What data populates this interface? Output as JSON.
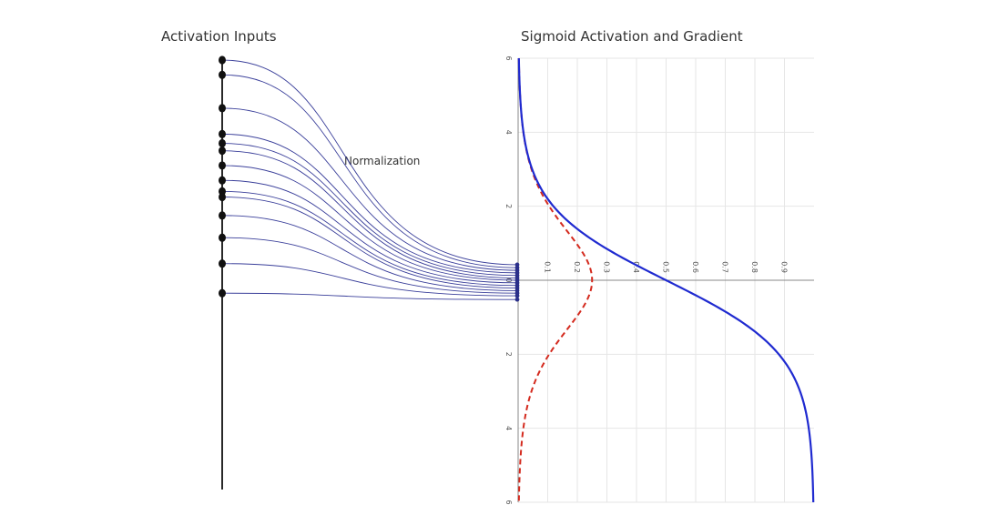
{
  "diagram": {
    "left_title": "Activation Inputs",
    "right_title": "Sigmoid Activation and Gradient",
    "annotation": "Normalization",
    "colors": {
      "lines": "#3a3f9a",
      "input_dots": "#111111",
      "output_dots": "#2a2f8a",
      "sigmoid": "#1f2ad0",
      "gradient": "#d42a1e",
      "grid": "#e6e6e6",
      "axis": "#888888"
    },
    "activation_inputs": [
      -5.95,
      -5.55,
      -4.65,
      -3.95,
      -3.7,
      -3.5,
      -3.1,
      -2.7,
      -2.4,
      -2.25,
      -1.75,
      -1.15,
      -0.45,
      0.35
    ],
    "normalized_values": [
      -0.42,
      -0.34,
      -0.27,
      -0.2,
      -0.13,
      -0.06,
      0.0,
      0.07,
      0.14,
      0.21,
      0.28,
      0.35,
      0.42,
      0.52
    ]
  },
  "chart_data": {
    "type": "line",
    "orientation": "rotated (x runs top-to-bottom, y runs left-to-right)",
    "x_range": [
      -6,
      6
    ],
    "y_range": [
      0,
      1
    ],
    "x_ticks": [
      "6",
      "4",
      "2",
      "0",
      "2",
      "4",
      "6"
    ],
    "x_tick_values": [
      -6,
      -4,
      -2,
      0,
      2,
      4,
      6
    ],
    "y_ticks": [
      "0.1",
      "0.2",
      "0.3",
      "0.4",
      "0.5",
      "0.6",
      "0.7",
      "0.8",
      "0.9"
    ],
    "y_tick_values": [
      0.1,
      0.2,
      0.3,
      0.4,
      0.5,
      0.6,
      0.7,
      0.8,
      0.9
    ],
    "series": [
      {
        "function": "sigmoid",
        "style": "solid"
      },
      {
        "function": "sigmoid_gradient",
        "style": "dashed"
      }
    ],
    "grid": true
  }
}
